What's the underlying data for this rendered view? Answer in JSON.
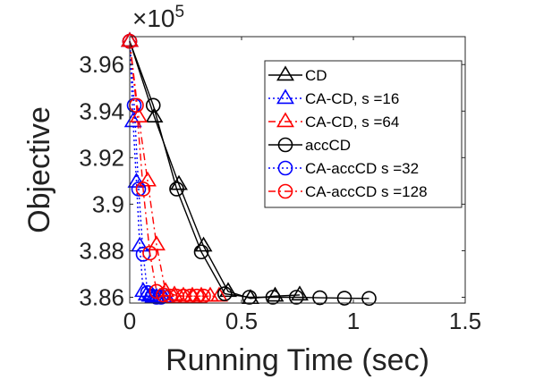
{
  "chart_data": {
    "type": "line",
    "xlabel": "Running Time (sec)",
    "ylabel": "Objective",
    "y_multiplier_base": "×10",
    "y_multiplier_exp": "5",
    "xlim": [
      0,
      1.5
    ],
    "ylim": [
      3.8575,
      3.972
    ],
    "xticks": [
      {
        "value": 0,
        "label": "0"
      },
      {
        "value": 0.5,
        "label": "0.5"
      },
      {
        "value": 1,
        "label": "1"
      },
      {
        "value": 1.5,
        "label": "1.5"
      }
    ],
    "yticks": [
      {
        "value": 3.86,
        "label": "3.86"
      },
      {
        "value": 3.88,
        "label": "3.88"
      },
      {
        "value": 3.9,
        "label": "3.9"
      },
      {
        "value": 3.92,
        "label": "3.92"
      },
      {
        "value": 3.94,
        "label": "3.94"
      },
      {
        "value": 3.96,
        "label": "3.96"
      }
    ],
    "grid": false,
    "legend_position": "top-right",
    "series": [
      {
        "name": "CD",
        "color": "#000000",
        "dash": "solid",
        "marker": "triangle",
        "x": [
          0,
          0.11,
          0.22,
          0.33,
          0.44,
          0.54,
          0.65,
          0.76
        ],
        "y": [
          3.97,
          3.9375,
          3.9085,
          3.882,
          3.8625,
          3.8595,
          3.8605,
          3.861
        ]
      },
      {
        "name": "CA-CD, s =16",
        "color": "#0000ff",
        "dash": "dotted",
        "marker": "triangle",
        "x": [
          0,
          0.015,
          0.03,
          0.045,
          0.06,
          0.075,
          0.09,
          0.105,
          0.12,
          0.135,
          0.15,
          0.165
        ],
        "y": [
          3.97,
          3.9355,
          3.9095,
          3.882,
          3.8625,
          3.861,
          3.8605,
          3.86,
          3.86,
          3.86,
          3.86,
          3.86
        ]
      },
      {
        "name": "CA-CD, s =64",
        "color": "#ff0000",
        "dash": "dashdot",
        "marker": "triangle",
        "x": [
          0,
          0.04,
          0.08,
          0.12,
          0.16,
          0.2,
          0.24,
          0.28,
          0.32,
          0.36,
          0.4
        ],
        "y": [
          3.97,
          3.9375,
          3.91,
          3.8825,
          3.8625,
          3.861,
          3.8605,
          3.8605,
          3.8605,
          3.8605,
          3.8605
        ]
      },
      {
        "name": "accCD",
        "color": "#000000",
        "dash": "solid",
        "marker": "circle",
        "x": [
          0,
          0.105,
          0.21,
          0.32,
          0.425,
          0.535,
          0.64,
          0.745,
          0.85,
          0.96,
          1.07
        ],
        "y": [
          3.97,
          3.9425,
          3.9065,
          3.8795,
          3.8615,
          3.86,
          3.86,
          3.86,
          3.8598,
          3.8596,
          3.8595
        ]
      },
      {
        "name": "CA-accCD s =32",
        "color": "#0000ff",
        "dash": "dotted",
        "marker": "circle",
        "x": [
          0,
          0.02,
          0.04,
          0.06,
          0.08,
          0.1,
          0.12,
          0.14
        ],
        "y": [
          3.97,
          3.9425,
          3.9065,
          3.8785,
          3.862,
          3.8605,
          3.86,
          3.86
        ]
      },
      {
        "name": "CA-accCD s =128",
        "color": "#ff0000",
        "dash": "dashdot",
        "marker": "circle",
        "x": [
          0,
          0.03,
          0.06,
          0.09,
          0.12,
          0.15,
          0.18,
          0.21,
          0.24,
          0.27,
          0.3,
          0.33
        ],
        "y": [
          3.97,
          3.9425,
          3.9065,
          3.879,
          3.8625,
          3.861,
          3.8605,
          3.8605,
          3.8605,
          3.8605,
          3.8605,
          3.8605
        ]
      }
    ]
  }
}
